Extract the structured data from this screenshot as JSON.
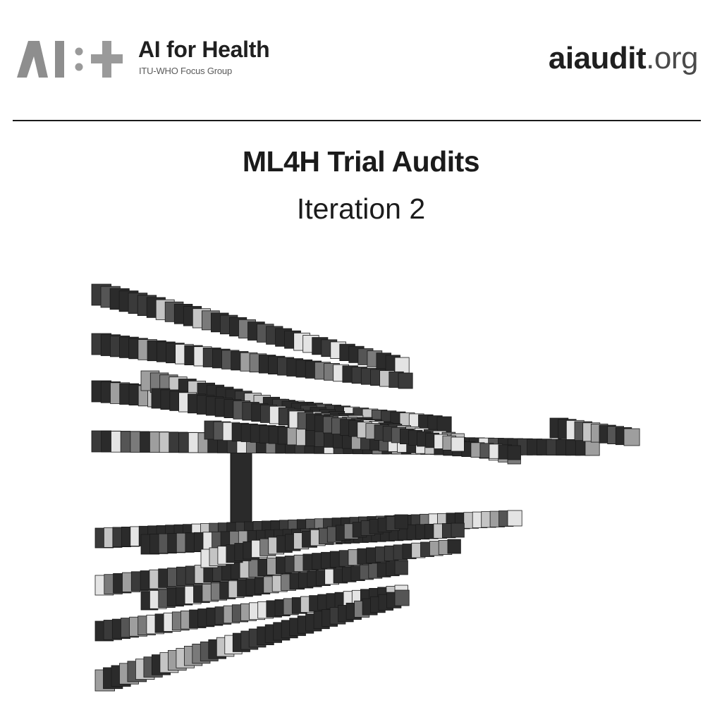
{
  "header": {
    "logo": {
      "icon": "ai-plus-logo-icon"
    },
    "org_name": "AI for Health",
    "org_subtitle": "ITU-WHO Focus Group",
    "site_bold": "aiaudit",
    "site_tld": ".org"
  },
  "main": {
    "title": "ML4H Trial Audits",
    "subtitle": "Iteration 2"
  },
  "artwork": {
    "icon": "voxel-tree-graphic-icon",
    "colors": [
      "#2b2b2b",
      "#3a3a3a",
      "#555555",
      "#7a7a7a",
      "#9e9e9e",
      "#c4c4c4",
      "#e4e4e4"
    ]
  }
}
